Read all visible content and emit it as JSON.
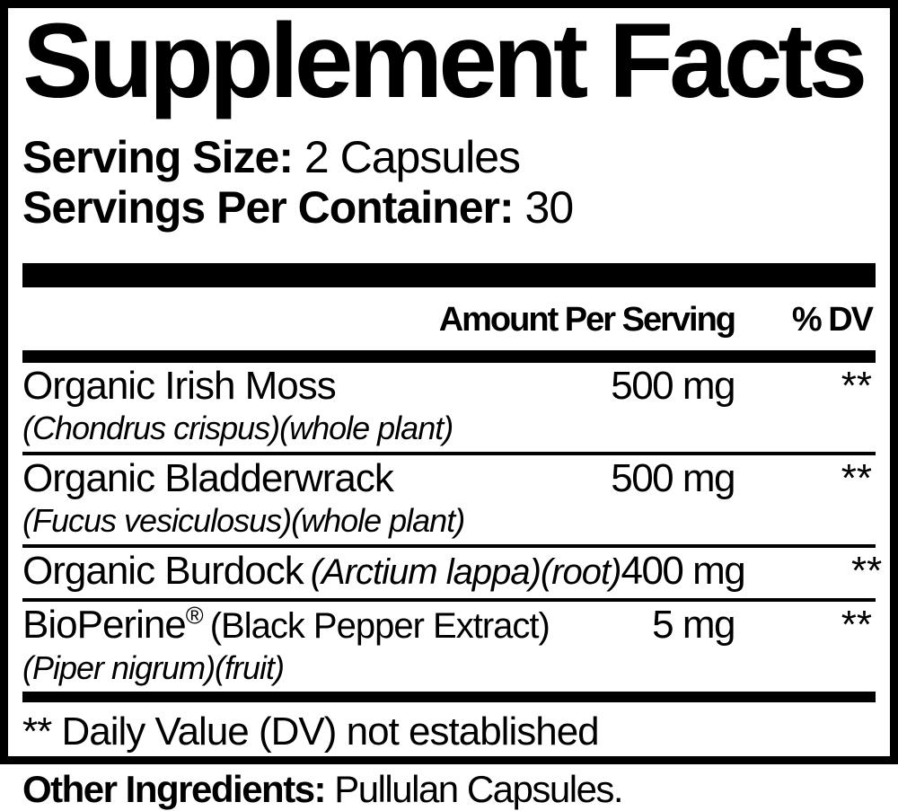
{
  "colors": {
    "text": "#000000",
    "background": "#ffffff",
    "rule": "#000000"
  },
  "panel": {
    "title": "Supplement Facts",
    "serving_size": {
      "label": "Serving Size:",
      "value": "2 Capsules"
    },
    "servings_per_container": {
      "label": "Servings Per Container:",
      "value": "30"
    },
    "column_headers": {
      "amount": "Amount Per Serving",
      "dv": "% DV"
    },
    "rows": [
      {
        "name": "Organic Irish Moss",
        "sub_italic": "(Chondrus crispus)(whole plant)",
        "amount": "500 mg",
        "dv": "**"
      },
      {
        "name": "Organic Bladderwrack",
        "sub_italic": "(Fucus vesiculosus)(whole plant)",
        "amount": "500 mg",
        "dv": "**"
      },
      {
        "name": "Organic Burdock",
        "name_italic": "(Arctium lappa)(root)",
        "amount": "400 mg",
        "dv": "**"
      },
      {
        "name": "BioPerine",
        "name_sup": "®",
        "name_note": "(Black Pepper Extract)",
        "sub_italic": "(Piper nigrum)(fruit)",
        "amount": "5 mg",
        "dv": "**"
      }
    ],
    "footnote": "** Daily Value (DV) not established",
    "other_ingredients": {
      "label": "Other Ingredients:",
      "value": "Pullulan Capsules."
    }
  }
}
